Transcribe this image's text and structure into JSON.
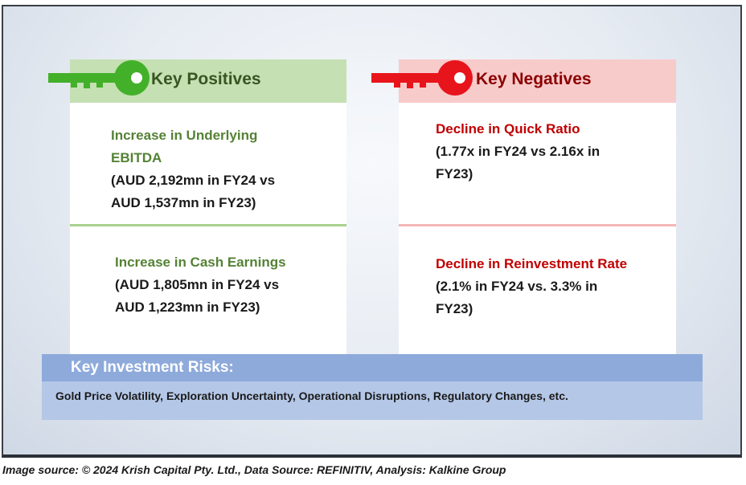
{
  "positives": {
    "title": "Key Positives",
    "items": [
      {
        "heading_line1": "Increase in Underlying",
        "heading_line2": "EBITDA",
        "detail_line1": "(AUD 2,192mn in FY24 vs",
        "detail_line2": "AUD 1,537mn in FY23)"
      },
      {
        "heading_line1": "Increase in Cash Earnings",
        "detail_line1": "(AUD 1,805mn in FY24 vs",
        "detail_line2": "AUD 1,223mn in FY23)"
      }
    ]
  },
  "negatives": {
    "title": "Key Negatives",
    "items": [
      {
        "heading_line1": "Decline in Quick Ratio",
        "detail_line1": "(1.77x in FY24 vs 2.16x in",
        "detail_line2": "FY23)"
      },
      {
        "heading_line1": "Decline in Reinvestment Rate",
        "detail_line1": "(2.1% in FY24 vs. 3.3% in",
        "detail_line2": "FY23)"
      }
    ]
  },
  "risks": {
    "title": "Key Investment Risks:",
    "text": "Gold Price Volatility, Exploration Uncertainty, Operational Disruptions, Regulatory Changes, etc."
  },
  "caption": "Image source: © 2024 Krish Capital Pty. Ltd., Data Source: REFINITIV, Analysis: Kalkine Group",
  "colors": {
    "positive_accent": "#548235",
    "negative_accent": "#c00000",
    "key_green": "#43b02a",
    "key_red": "#e8141c",
    "risk_header": "#8eaadb"
  },
  "icons": [
    "green-key-icon",
    "red-key-icon"
  ]
}
